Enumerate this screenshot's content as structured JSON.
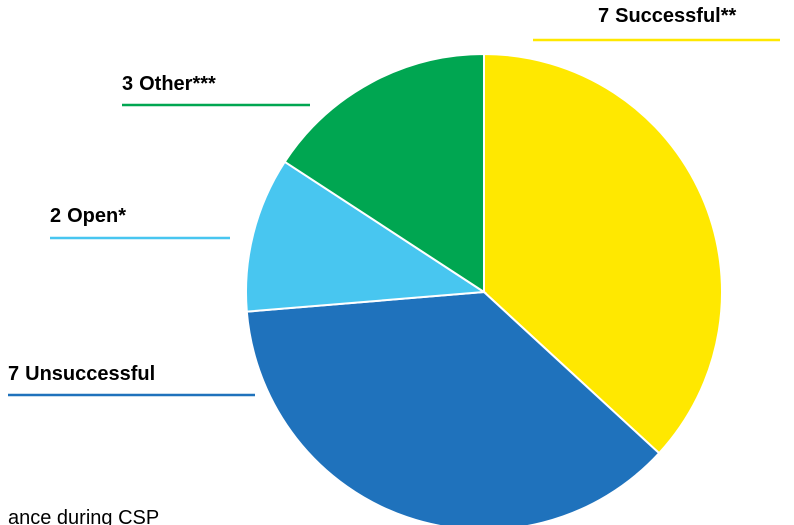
{
  "chart_data": {
    "type": "pie",
    "categories": [
      "Successful**",
      "Unsuccessful",
      "Open*",
      "Other***"
    ],
    "values": [
      7,
      7,
      2,
      3
    ],
    "colors": [
      "#ffe800",
      "#1f72bc",
      "#48c6f0",
      "#00a651"
    ],
    "start_angle": 0,
    "direction": "clockwise",
    "footnote": "ance during CSP"
  }
}
